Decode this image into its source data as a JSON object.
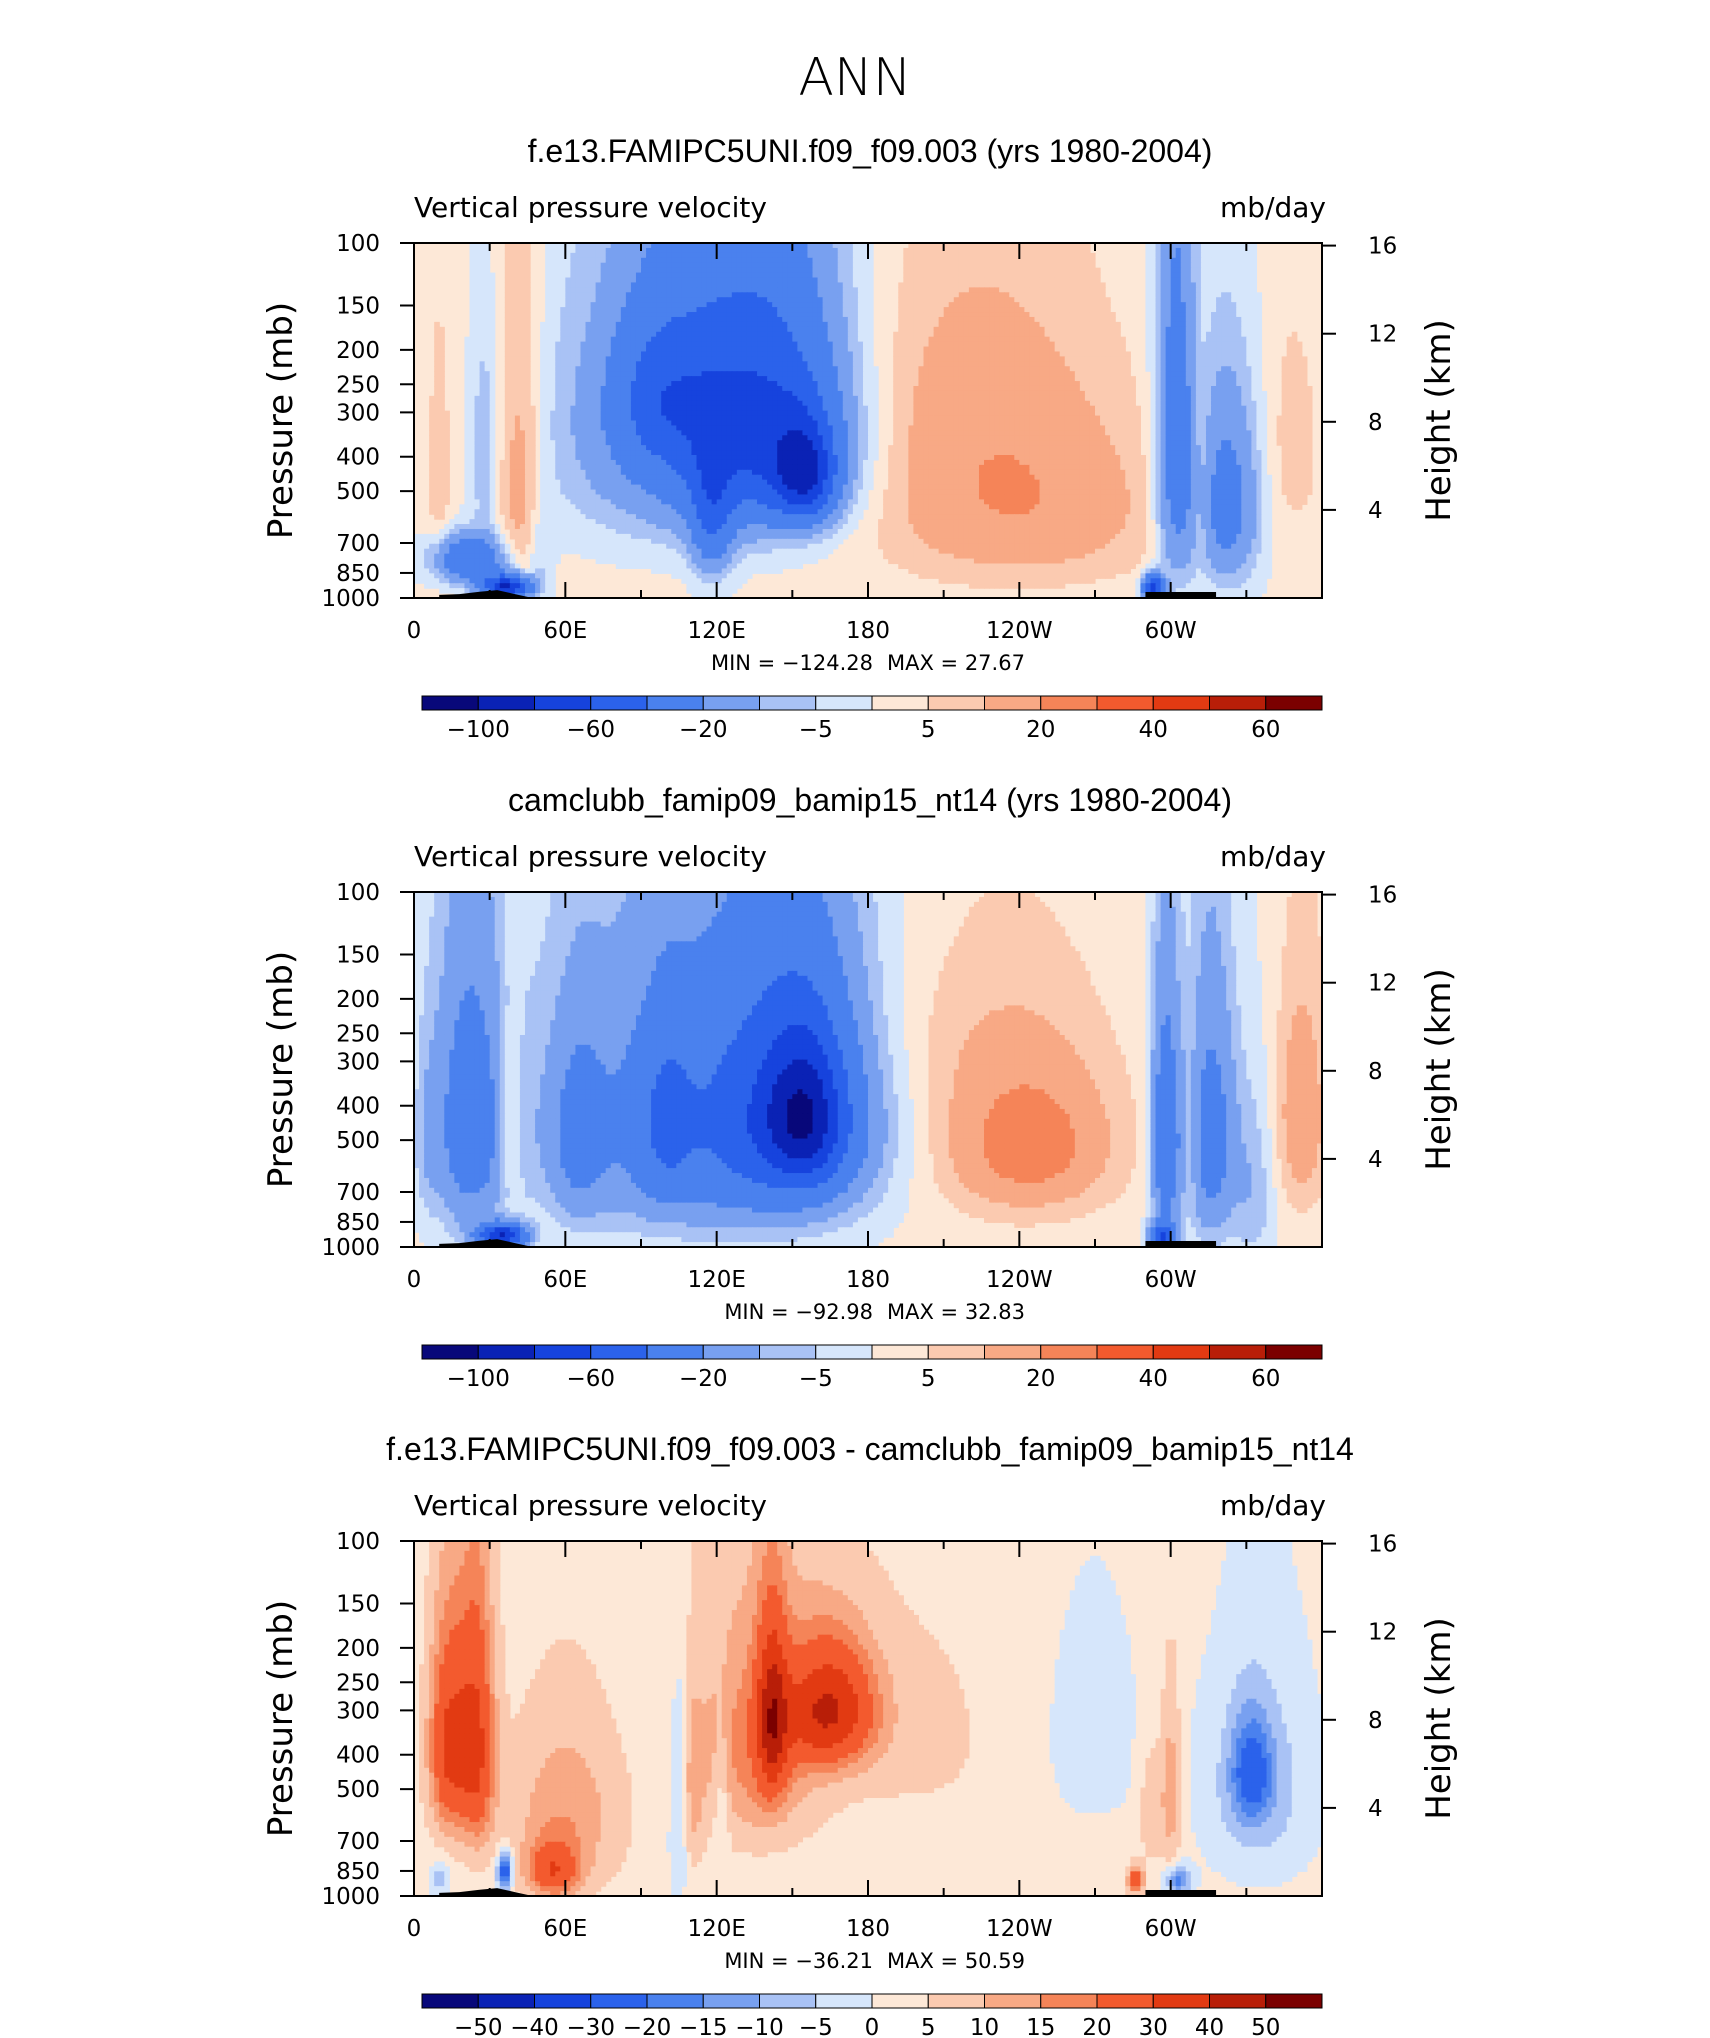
{
  "figure": {
    "season": "ANN"
  },
  "colors": {
    "bluescale": [
      "#08087a",
      "#0a22b5",
      "#1643dd",
      "#2b62eb",
      "#4a81ee",
      "#78a0f0",
      "#a9c2f5",
      "#d6e6fb"
    ],
    "redscale": [
      "#fde8d7",
      "#fbcab0",
      "#f8a985",
      "#f58458",
      "#f35a2e",
      "#e23a12",
      "#b81e08",
      "#7b0000"
    ],
    "topography": "#000000"
  },
  "chart_data": [
    {
      "type": "heatmap",
      "title": "f.e13.FAMIPC5UNI.f09_f09.003 (yrs 1980-2004)",
      "left_label": "Vertical pressure velocity",
      "right_label": "mb/day",
      "ylabel": "Pressure (mb)",
      "y2label": "Height (km)",
      "x_ticks": [
        "0",
        "60E",
        "120E",
        "180",
        "120W",
        "60W"
      ],
      "x_range": [
        0,
        360
      ],
      "y_ticks": [
        "100",
        "150",
        "200",
        "250",
        "300",
        "400",
        "500",
        "700",
        "850",
        "1000"
      ],
      "y_range_mb": [
        100,
        1000
      ],
      "y2_ticks": [
        "16",
        "12",
        "8",
        "4"
      ],
      "min_text": "MIN = −124.28",
      "max_text": "MAX = 27.67",
      "colorbar_labels": [
        "−100",
        "−60",
        "−20",
        "−5",
        "5",
        "20",
        "40",
        "60"
      ],
      "fields": [
        {
          "lon": 115,
          "p": 330,
          "rlon": 52,
          "rp": 300,
          "v": -30
        },
        {
          "lon": 138,
          "p": 330,
          "rlon": 30,
          "rp": 250,
          "v": -45
        },
        {
          "lon": 98,
          "p": 270,
          "rlon": 18,
          "rp": 130,
          "v": -28
        },
        {
          "lon": 155,
          "p": 450,
          "rlon": 12,
          "rp": 140,
          "v": -60
        },
        {
          "lon": 118,
          "p": 600,
          "rlon": 8,
          "rp": 250,
          "v": -30
        },
        {
          "lon": 22,
          "p": 780,
          "rlon": 14,
          "rp": 120,
          "v": -40
        },
        {
          "lon": 37,
          "p": 930,
          "rlon": 9,
          "rp": 70,
          "v": -85
        },
        {
          "lon": 28,
          "p": 400,
          "rlon": 5,
          "rp": 250,
          "v": -10
        },
        {
          "lon": 10,
          "p": 450,
          "rlon": 5,
          "rp": 380,
          "v": 7
        },
        {
          "lon": 42,
          "p": 450,
          "rlon": 9,
          "rp": 450,
          "v": 14
        },
        {
          "lon": 50,
          "p": 750,
          "rlon": 5,
          "rp": 250,
          "v": -8
        },
        {
          "lon": 228,
          "p": 460,
          "rlon": 50,
          "rp": 350,
          "v": 16
        },
        {
          "lon": 258,
          "p": 600,
          "rlon": 45,
          "rp": 280,
          "v": 6
        },
        {
          "lon": 200,
          "p": 220,
          "rlon": 50,
          "rp": 180,
          "v": 3
        },
        {
          "lon": 302,
          "p": 380,
          "rlon": 8,
          "rp": 450,
          "v": -32
        },
        {
          "lon": 322,
          "p": 540,
          "rlon": 13,
          "rp": 330,
          "v": -30
        },
        {
          "lon": 293,
          "p": 940,
          "rlon": 4,
          "rp": 80,
          "v": -70
        },
        {
          "lon": 312,
          "p": 500,
          "rlon": 4,
          "rp": 300,
          "v": 9
        },
        {
          "lon": 348,
          "p": 380,
          "rlon": 12,
          "rp": 280,
          "v": 6
        }
      ],
      "topography": [
        [
          10,
          980
        ],
        [
          18,
          975
        ],
        [
          26,
          960
        ],
        [
          33,
          950
        ],
        [
          40,
          975
        ],
        [
          47,
          1000
        ],
        [
          290,
          1000
        ],
        [
          298,
          990
        ],
        [
          308,
          995
        ],
        [
          318,
          1000
        ]
      ]
    },
    {
      "type": "heatmap",
      "title": "camclubb_famip09_bamip15_nt14 (yrs 1980-2004)",
      "left_label": "Vertical pressure velocity",
      "right_label": "mb/day",
      "ylabel": "Pressure (mb)",
      "y2label": "Height (km)",
      "x_ticks": [
        "0",
        "60E",
        "120E",
        "180",
        "120W",
        "60W"
      ],
      "x_range": [
        0,
        360
      ],
      "y_ticks": [
        "100",
        "150",
        "200",
        "250",
        "300",
        "400",
        "500",
        "700",
        "850",
        "1000"
      ],
      "y_range_mb": [
        100,
        1000
      ],
      "y2_ticks": [
        "16",
        "12",
        "8",
        "4"
      ],
      "min_text": "MIN = −92.98",
      "max_text": "MAX = 32.83",
      "colorbar_labels": [
        "−100",
        "−60",
        "−20",
        "−5",
        "5",
        "20",
        "40",
        "60"
      ],
      "fields": [
        {
          "lon": 110,
          "p": 450,
          "rlon": 60,
          "rp": 400,
          "v": -28
        },
        {
          "lon": 148,
          "p": 420,
          "rlon": 32,
          "rp": 330,
          "v": -40
        },
        {
          "lon": 155,
          "p": 430,
          "rlon": 15,
          "rp": 200,
          "v": -55
        },
        {
          "lon": 100,
          "p": 450,
          "rlon": 10,
          "rp": 250,
          "v": -20
        },
        {
          "lon": 65,
          "p": 500,
          "rlon": 10,
          "rp": 300,
          "v": -15
        },
        {
          "lon": 22,
          "p": 450,
          "rlon": 14,
          "rp": 400,
          "v": -30
        },
        {
          "lon": 35,
          "p": 930,
          "rlon": 9,
          "rp": 70,
          "v": -80
        },
        {
          "lon": 38,
          "p": 450,
          "rlon": 5,
          "rp": 250,
          "v": 12
        },
        {
          "lon": 5,
          "p": 500,
          "rlon": 5,
          "rp": 300,
          "v": -6
        },
        {
          "lon": 238,
          "p": 480,
          "rlon": 42,
          "rp": 330,
          "v": 11
        },
        {
          "lon": 245,
          "p": 520,
          "rlon": 25,
          "rp": 200,
          "v": 17
        },
        {
          "lon": 205,
          "p": 250,
          "rlon": 45,
          "rp": 160,
          "v": 3
        },
        {
          "lon": 298,
          "p": 500,
          "rlon": 6,
          "rp": 400,
          "v": -35
        },
        {
          "lon": 316,
          "p": 500,
          "rlon": 10,
          "rp": 400,
          "v": -30
        },
        {
          "lon": 297,
          "p": 940,
          "rlon": 5,
          "rp": 80,
          "v": -60
        },
        {
          "lon": 308,
          "p": 550,
          "rlon": 3,
          "rp": 300,
          "v": 6
        },
        {
          "lon": 352,
          "p": 430,
          "rlon": 10,
          "rp": 300,
          "v": 15
        },
        {
          "lon": 333,
          "p": 700,
          "rlon": 8,
          "rp": 400,
          "v": -10
        }
      ],
      "topography": [
        [
          10,
          980
        ],
        [
          18,
          975
        ],
        [
          26,
          960
        ],
        [
          33,
          950
        ],
        [
          40,
          975
        ],
        [
          47,
          1000
        ],
        [
          290,
          1000
        ],
        [
          298,
          990
        ],
        [
          308,
          995
        ],
        [
          318,
          1000
        ]
      ]
    },
    {
      "type": "heatmap",
      "title": "f.e13.FAMIPC5UNI.f09_f09.003 - camclubb_famip09_bamip15_nt14",
      "left_label": "Vertical pressure velocity",
      "right_label": "mb/day",
      "ylabel": "Pressure (mb)",
      "y2label": "Height (km)",
      "x_ticks": [
        "0",
        "60E",
        "120E",
        "180",
        "120W",
        "60W"
      ],
      "x_range": [
        0,
        360
      ],
      "y_ticks": [
        "100",
        "150",
        "200",
        "250",
        "300",
        "400",
        "500",
        "700",
        "850",
        "1000"
      ],
      "y_range_mb": [
        100,
        1000
      ],
      "y2_ticks": [
        "16",
        "12",
        "8",
        "4"
      ],
      "min_text": "MIN = −36.21",
      "max_text": "MAX = 50.59",
      "colorbar_labels": [
        "−50",
        "−40",
        "−30",
        "−20",
        "−15",
        "−10",
        "−5",
        "0",
        "5",
        "10",
        "15",
        "20",
        "30",
        "40",
        "50"
      ],
      "fields": [
        {
          "lon": 14,
          "p": 380,
          "rlon": 8,
          "rp": 250,
          "v": 30
        },
        {
          "lon": 25,
          "p": 380,
          "rlon": 7,
          "rp": 300,
          "v": 28
        },
        {
          "lon": 60,
          "p": 600,
          "rlon": 22,
          "rp": 350,
          "v": 12
        },
        {
          "lon": 55,
          "p": 850,
          "rlon": 10,
          "rp": 150,
          "v": 22
        },
        {
          "lon": 135,
          "p": 380,
          "rlon": 25,
          "rp": 300,
          "v": 15
        },
        {
          "lon": 165,
          "p": 300,
          "rlon": 18,
          "rp": 120,
          "v": 35
        },
        {
          "lon": 142,
          "p": 320,
          "rlon": 6,
          "rp": 180,
          "v": 30
        },
        {
          "lon": 105,
          "p": 550,
          "rlon": 4,
          "rp": 400,
          "v": -10
        },
        {
          "lon": 122,
          "p": 550,
          "rlon": 3,
          "rp": 250,
          "v": -8
        },
        {
          "lon": 110,
          "p": 550,
          "rlon": 4,
          "rp": 300,
          "v": 8
        },
        {
          "lon": 200,
          "p": 350,
          "rlon": 40,
          "rp": 300,
          "v": 4
        },
        {
          "lon": 268,
          "p": 350,
          "rlon": 25,
          "rp": 300,
          "v": -4
        },
        {
          "lon": 335,
          "p": 500,
          "rlon": 22,
          "rp": 350,
          "v": -10
        },
        {
          "lon": 332,
          "p": 450,
          "rlon": 8,
          "rp": 150,
          "v": -20
        },
        {
          "lon": 300,
          "p": 500,
          "rlon": 4,
          "rp": 300,
          "v": 12
        },
        {
          "lon": 292,
          "p": 560,
          "rlon": 5,
          "rp": 250,
          "v": 7
        },
        {
          "lon": 303,
          "p": 900,
          "rlon": 5,
          "rp": 80,
          "v": -20
        },
        {
          "lon": 286,
          "p": 900,
          "rlon": 3,
          "rp": 80,
          "v": 25
        },
        {
          "lon": 36,
          "p": 850,
          "rlon": 3,
          "rp": 100,
          "v": -30
        },
        {
          "lon": 10,
          "p": 900,
          "rlon": 4,
          "rp": 100,
          "v": -10
        }
      ],
      "topography": [
        [
          10,
          980
        ],
        [
          18,
          975
        ],
        [
          26,
          960
        ],
        [
          33,
          950
        ],
        [
          40,
          975
        ],
        [
          47,
          1000
        ],
        [
          290,
          1000
        ],
        [
          298,
          990
        ],
        [
          308,
          995
        ],
        [
          318,
          1000
        ]
      ]
    }
  ]
}
